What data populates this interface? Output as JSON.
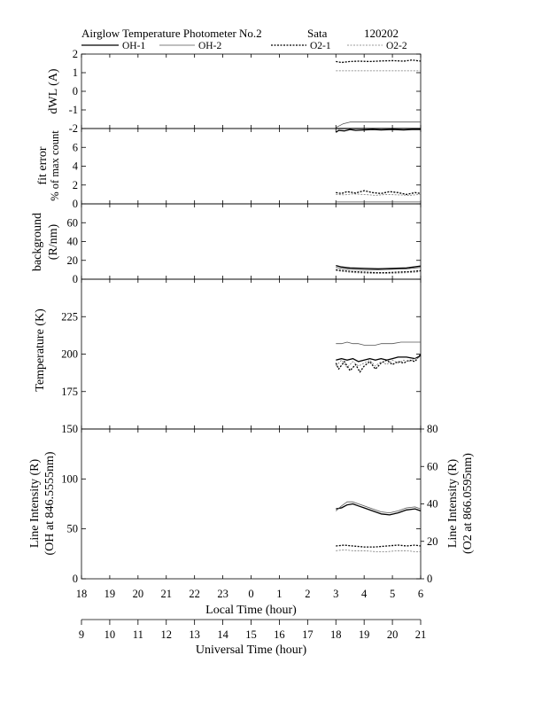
{
  "header": {
    "title": "Airglow Temperature Photometer No.2",
    "station": "Sata",
    "date": "120202"
  },
  "legend": [
    {
      "label": "OH-1",
      "style": "solid-thick",
      "color": "#000000"
    },
    {
      "label": "OH-2",
      "style": "solid-thin",
      "color": "#555555"
    },
    {
      "label": "O2-1",
      "style": "dotted",
      "color": "#000000"
    },
    {
      "label": "O2-2",
      "style": "dotted-thin",
      "color": "#777777"
    }
  ],
  "x_axes": {
    "local_time": {
      "label": "Local Time (hour)",
      "ticks": [
        "18",
        "19",
        "20",
        "21",
        "22",
        "23",
        "0",
        "1",
        "2",
        "3",
        "4",
        "5",
        "6"
      ]
    },
    "universal_time": {
      "label": "Universal Time (hour)",
      "ticks": [
        "9",
        "10",
        "11",
        "12",
        "13",
        "14",
        "15",
        "16",
        "17",
        "18",
        "19",
        "20",
        "21"
      ]
    }
  },
  "chart_data": [
    {
      "type": "line",
      "ylabel": [
        "dWL (A)"
      ],
      "ylim": [
        -2,
        2
      ],
      "yticks": [
        "-2",
        "-1",
        "0",
        "1",
        "2"
      ],
      "x_unit": "UT hour",
      "series": [
        {
          "name": "OH-1",
          "x": [
            18.0,
            18.25,
            18.5,
            19.0,
            20.0,
            21.0
          ],
          "y": [
            -2.0,
            -2.0,
            -2.0,
            -2.0,
            -2.0,
            -2.0
          ]
        },
        {
          "name": "OH-2",
          "x": [
            18.0,
            18.25,
            18.5,
            19.0,
            19.5,
            20.0,
            20.5,
            21.0
          ],
          "y": [
            -1.95,
            -1.75,
            -1.65,
            -1.65,
            -1.65,
            -1.65,
            -1.65,
            -1.65
          ]
        },
        {
          "name": "O2-1",
          "x": [
            18.0,
            18.2,
            18.5,
            18.8,
            19.2,
            19.6,
            20.0,
            20.4,
            20.7,
            21.0
          ],
          "y": [
            1.6,
            1.55,
            1.6,
            1.62,
            1.6,
            1.63,
            1.65,
            1.62,
            1.68,
            1.62
          ]
        },
        {
          "name": "O2-2",
          "x": [
            18.0,
            18.5,
            19.0,
            19.5,
            20.0,
            20.5,
            21.0
          ],
          "y": [
            1.1,
            1.1,
            1.1,
            1.1,
            1.1,
            1.1,
            1.1
          ]
        }
      ]
    },
    {
      "type": "line",
      "ylabel": [
        "fit error",
        "% of max count"
      ],
      "ylim": [
        0,
        8
      ],
      "yticks": [
        "0",
        "2",
        "4",
        "6"
      ],
      "x_unit": "UT hour",
      "series": [
        {
          "name": "OH-1",
          "x": [
            18.0,
            18.1,
            18.3,
            18.5,
            18.7,
            19.0,
            19.3,
            19.6,
            20.0,
            20.4,
            20.7,
            21.0
          ],
          "y": [
            7.6,
            7.8,
            7.75,
            7.9,
            7.8,
            7.85,
            7.9,
            7.85,
            7.9,
            7.85,
            7.9,
            7.9
          ]
        },
        {
          "name": "OH-2",
          "x": [
            18.0,
            18.5,
            19.0,
            19.5,
            20.0,
            20.5,
            21.0
          ],
          "y": [
            0.2,
            0.2,
            0.2,
            0.2,
            0.2,
            0.2,
            0.2
          ]
        },
        {
          "name": "O2-1",
          "x": [
            18.0,
            18.2,
            18.4,
            18.7,
            19.0,
            19.3,
            19.6,
            19.9,
            20.2,
            20.5,
            20.8,
            21.0
          ],
          "y": [
            1.2,
            1.1,
            1.3,
            1.15,
            1.4,
            1.2,
            1.1,
            1.3,
            1.2,
            1.0,
            1.2,
            1.1
          ]
        },
        {
          "name": "O2-2",
          "x": [
            18.0,
            18.3,
            18.6,
            19.0,
            19.4,
            19.8,
            20.2,
            20.6,
            21.0
          ],
          "y": [
            1.0,
            0.95,
            1.05,
            1.0,
            0.9,
            1.0,
            0.95,
            0.9,
            1.0
          ]
        }
      ]
    },
    {
      "type": "line",
      "ylabel": [
        "background",
        "(R/nm)"
      ],
      "ylim": [
        0,
        80
      ],
      "yticks": [
        "0",
        "20",
        "40",
        "60"
      ],
      "x_unit": "UT hour",
      "series": [
        {
          "name": "OH-1",
          "x": [
            18.0,
            18.2,
            18.5,
            19.0,
            19.5,
            20.0,
            20.5,
            21.0
          ],
          "y": [
            14.5,
            13.0,
            12.0,
            11.5,
            11.0,
            11.5,
            12.0,
            14.0
          ]
        },
        {
          "name": "OH-2",
          "x": [
            18.0,
            18.2,
            18.5,
            19.0,
            19.5,
            20.0,
            20.5,
            21.0
          ],
          "y": [
            12.5,
            11.5,
            10.5,
            10.0,
            10.0,
            10.5,
            11.0,
            12.5
          ]
        },
        {
          "name": "O2-1",
          "x": [
            18.0,
            18.3,
            18.6,
            19.0,
            19.4,
            19.8,
            20.2,
            20.6,
            21.0
          ],
          "y": [
            10.0,
            9.0,
            8.0,
            7.5,
            7.0,
            7.0,
            7.5,
            8.0,
            9.0
          ]
        },
        {
          "name": "O2-2",
          "x": [
            18.0,
            18.3,
            18.6,
            19.0,
            19.4,
            19.8,
            20.2,
            20.6,
            21.0
          ],
          "y": [
            9.0,
            8.0,
            7.0,
            6.5,
            6.0,
            6.0,
            6.5,
            7.0,
            8.0
          ]
        }
      ]
    },
    {
      "type": "line",
      "ylabel": [
        "Temperature (K)"
      ],
      "ylim": [
        150,
        250
      ],
      "yticks": [
        "175",
        "200",
        "225"
      ],
      "x_unit": "UT hour",
      "series": [
        {
          "name": "OH-1",
          "x": [
            18.0,
            18.2,
            18.4,
            18.6,
            18.8,
            19.0,
            19.2,
            19.4,
            19.6,
            19.8,
            20.0,
            20.2,
            20.5,
            20.8,
            21.0
          ],
          "y": [
            196,
            197,
            196,
            197,
            195,
            196,
            197,
            196,
            197,
            196,
            197,
            198,
            198,
            197,
            199
          ]
        },
        {
          "name": "OH-2",
          "x": [
            18.0,
            18.2,
            18.4,
            18.6,
            18.8,
            19.0,
            19.2,
            19.4,
            19.6,
            19.8,
            20.0,
            20.3,
            20.6,
            21.0
          ],
          "y": [
            207,
            207,
            208,
            207,
            207,
            206,
            206,
            206,
            207,
            207,
            207,
            208,
            208,
            208
          ]
        },
        {
          "name": "O2-1",
          "x": [
            18.0,
            18.1,
            18.3,
            18.5,
            18.7,
            18.85,
            19.0,
            19.2,
            19.4,
            19.6,
            19.8,
            20.0,
            20.2,
            20.4,
            20.6,
            20.8,
            21.0
          ],
          "y": [
            194,
            190,
            195,
            189,
            193,
            188,
            192,
            195,
            190,
            194,
            196,
            193,
            195,
            194,
            196,
            195,
            200
          ]
        },
        {
          "name": "O2-2",
          "x": [
            18.0,
            18.2,
            18.4,
            18.6,
            18.8,
            19.0,
            19.2,
            19.4,
            19.6,
            19.8,
            20.0,
            20.2,
            20.4,
            20.6,
            20.8,
            21.0
          ],
          "y": [
            192,
            196,
            191,
            195,
            192,
            194,
            196,
            192,
            195,
            193,
            196,
            194,
            196,
            195,
            197,
            198
          ]
        }
      ]
    },
    {
      "type": "line",
      "ylabel": [
        "Line Intensity (R)",
        "(OH at 846.5555nm)"
      ],
      "ylabel_right": [
        "Line Intensity (R)",
        "(O2 at 866.0595nm)"
      ],
      "ylim": [
        0,
        150
      ],
      "ylim_right": [
        0,
        80
      ],
      "yticks": [
        "0",
        "50",
        "100",
        "150"
      ],
      "yticks_right": [
        "0",
        "20",
        "40",
        "60",
        "80"
      ],
      "x_unit": "UT hour",
      "series": [
        {
          "name": "OH-1",
          "axis": "left",
          "x": [
            18.0,
            18.2,
            18.4,
            18.6,
            18.8,
            19.0,
            19.3,
            19.6,
            19.9,
            20.2,
            20.5,
            20.8,
            21.0
          ],
          "y": [
            70,
            71,
            74,
            75,
            73,
            71,
            68,
            65,
            64,
            66,
            69,
            70,
            68
          ]
        },
        {
          "name": "OH-2",
          "axis": "left",
          "x": [
            18.0,
            18.2,
            18.4,
            18.6,
            18.8,
            19.0,
            19.3,
            19.6,
            19.9,
            20.2,
            20.5,
            20.8,
            21.0
          ],
          "y": [
            68,
            73,
            77,
            77,
            75,
            73,
            70,
            67,
            66,
            68,
            71,
            72,
            70
          ]
        },
        {
          "name": "O2-1",
          "axis": "right",
          "x": [
            18.0,
            18.3,
            18.6,
            19.0,
            19.4,
            19.8,
            20.2,
            20.5,
            20.8,
            21.0
          ],
          "y": [
            17.5,
            18.0,
            17.5,
            17.0,
            17.0,
            17.5,
            18.0,
            17.5,
            18.0,
            17.5
          ]
        },
        {
          "name": "O2-2",
          "axis": "right",
          "x": [
            18.0,
            18.3,
            18.6,
            19.0,
            19.4,
            19.8,
            20.2,
            20.5,
            20.8,
            21.0
          ],
          "y": [
            15.0,
            15.5,
            15.0,
            15.0,
            14.5,
            14.5,
            15.0,
            15.0,
            14.5,
            14.5
          ]
        }
      ]
    }
  ]
}
